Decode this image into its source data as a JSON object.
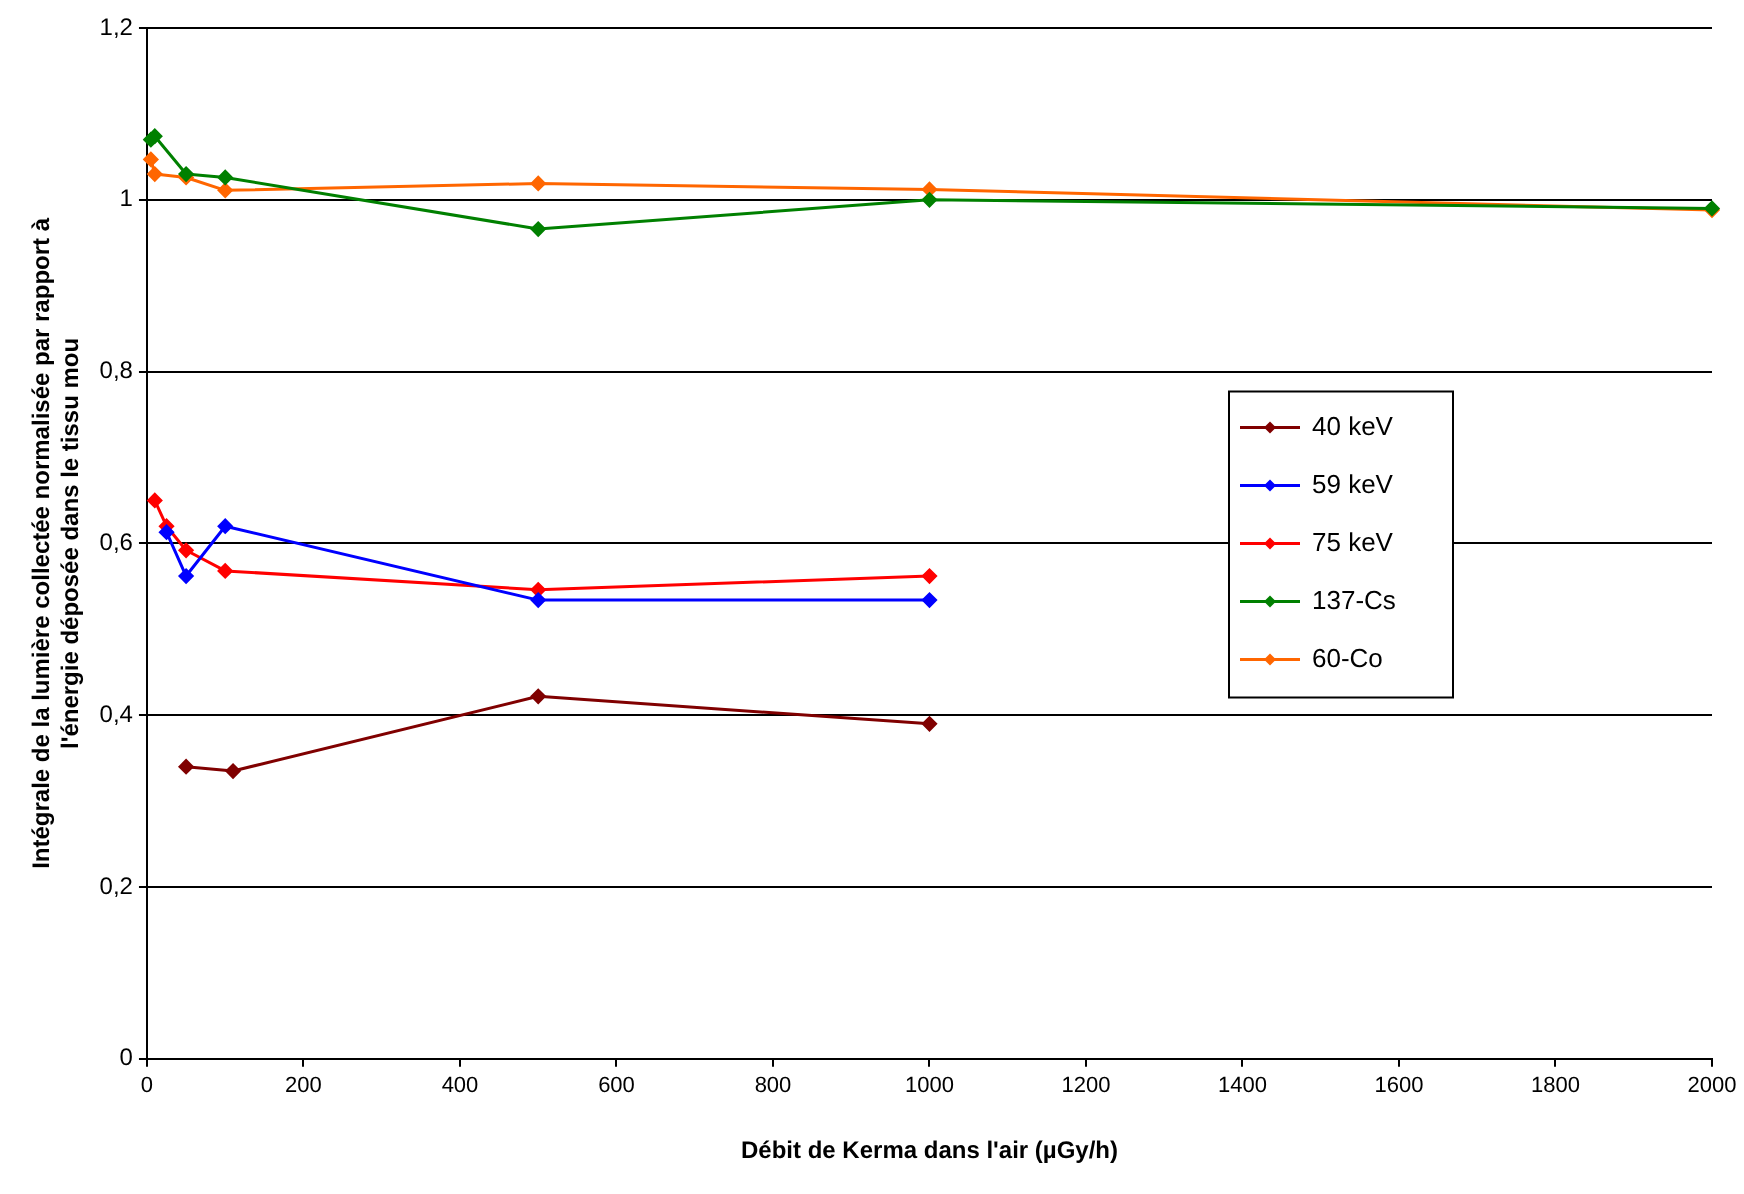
{
  "chart_data": {
    "type": "line",
    "xlabel": "Débit de Kerma dans l'air (µGy/h)",
    "ylabel": "Intégrale de la lumière collectée normalisée par rapport à l'énergie déposée dans le tissu mou",
    "xlim": [
      0,
      2000
    ],
    "xticks": [
      0,
      200,
      400,
      600,
      800,
      1000,
      1200,
      1400,
      1600,
      1800,
      2000
    ],
    "ylim": [
      0,
      1.2
    ],
    "yticks": [
      {
        "value": 0,
        "label": "0"
      },
      {
        "value": 0.2,
        "label": "0,2"
      },
      {
        "value": 0.4,
        "label": "0,4"
      },
      {
        "value": 0.6,
        "label": "0,6"
      },
      {
        "value": 0.8,
        "label": "0,8"
      },
      {
        "value": 1,
        "label": "1"
      },
      {
        "value": 1.2,
        "label": "1,2"
      }
    ],
    "grid": "y",
    "legend": "right",
    "marker": "diamond",
    "series": [
      {
        "name": "40 keV",
        "color": "#800000",
        "x": [
          50,
          110,
          500,
          1000
        ],
        "values": [
          0.34,
          0.335,
          0.422,
          0.39
        ]
      },
      {
        "name": "59 keV",
        "color": "#0000ff",
        "x": [
          25,
          50,
          100,
          500,
          1000
        ],
        "values": [
          0.613,
          0.562,
          0.62,
          0.534,
          0.534
        ]
      },
      {
        "name": "75 keV",
        "color": "#ff0000",
        "x": [
          10,
          25,
          50,
          100,
          500,
          1000
        ],
        "values": [
          0.65,
          0.62,
          0.592,
          0.568,
          0.546,
          0.562
        ]
      },
      {
        "name": "137-Cs",
        "color": "#008000",
        "x": [
          5,
          10,
          50,
          100,
          500,
          1000,
          2000
        ],
        "values": [
          1.07,
          1.074,
          1.03,
          1.026,
          0.966,
          1.0,
          0.99
        ]
      },
      {
        "name": "60-Co",
        "color": "#ff6600",
        "x": [
          5,
          10,
          50,
          100,
          500,
          1000,
          2000
        ],
        "values": [
          1.047,
          1.03,
          1.026,
          1.011,
          1.019,
          1.012,
          0.988
        ]
      }
    ]
  }
}
